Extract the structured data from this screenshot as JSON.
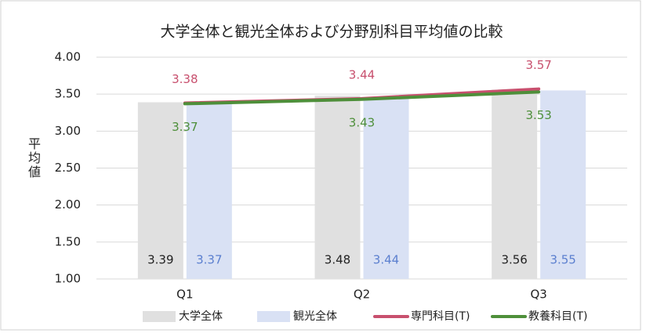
{
  "chart_data": {
    "type": "bar",
    "title": "大学全体と観光全体および分野別科目平均値の比較",
    "y_label": "平均値",
    "categories": [
      "Q1",
      "Q2",
      "Q3"
    ],
    "series": [
      {
        "name": "大学全体",
        "type": "bar",
        "color": "#e0e0e0",
        "label_color": "#222222",
        "values": [
          3.39,
          3.48,
          3.56
        ]
      },
      {
        "name": "観光全体",
        "type": "bar",
        "color": "#d9e1f4",
        "label_color": "#5b7fcf",
        "values": [
          3.37,
          3.44,
          3.55
        ]
      },
      {
        "name": "専門科目(T)",
        "type": "line",
        "color": "#c8506e",
        "label_color": "#c8506e",
        "label_side": "above",
        "values": [
          3.38,
          3.44,
          3.57
        ]
      },
      {
        "name": "教養科目(T)",
        "type": "line",
        "color": "#4e8f3a",
        "label_color": "#4e8f3a",
        "label_side": "below",
        "values": [
          3.37,
          3.43,
          3.53
        ]
      }
    ],
    "ylim": [
      1,
      4
    ],
    "yticks": [
      {
        "value": 1,
        "label": "1.00"
      },
      {
        "value": 1.5,
        "label": "1.50"
      },
      {
        "value": 2,
        "label": "2.00"
      },
      {
        "value": 2.5,
        "label": "2.50"
      },
      {
        "value": 3,
        "label": "3.00"
      },
      {
        "value": 3.5,
        "label": "3.50"
      },
      {
        "value": 4,
        "label": "4.00"
      }
    ],
    "grid": true,
    "legend": "bottom"
  }
}
